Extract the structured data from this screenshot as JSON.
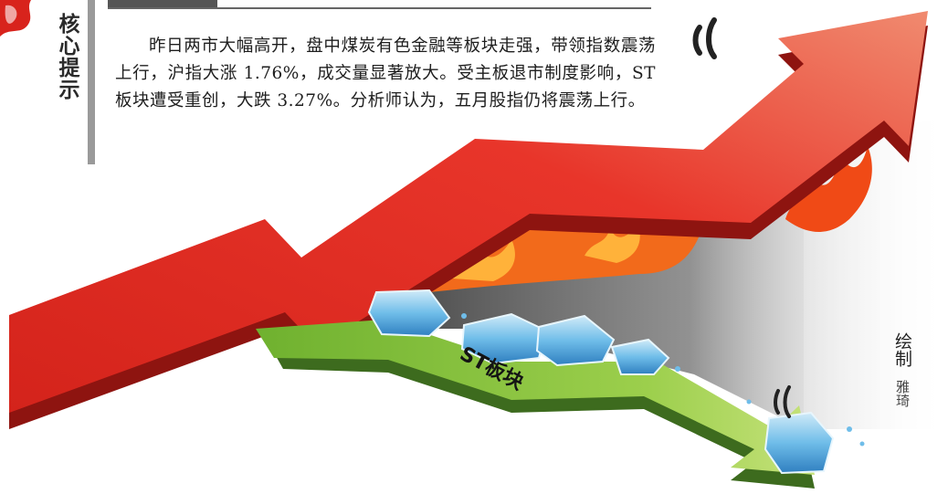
{
  "side_label": "核心提示",
  "summary": "昨日两市大幅高开，盘中煤炭有色金融等板块走强，带领指数震荡上行，沪指大涨 1.76%，成交量显著放大。受主板退市制度影响，ST 板块遭受重创，大跌 3.27%。分析师认为，五月股指仍将震荡上行。",
  "down_arrow_label": "ST板块",
  "credit": {
    "title": "绘制",
    "author": "雅琦"
  },
  "colors": {
    "up_arrow": "#e0261e",
    "up_arrow_shadow": "#8e1410",
    "down_arrow": "#7fc23a",
    "down_arrow_shadow": "#3d6b1e",
    "flame": "#f26a1b",
    "ice": "#5fb3e6"
  },
  "icons": [
    "side-corner-deco-icon",
    "motion-lines-icon",
    "flame-icon",
    "ice-block-icon"
  ]
}
